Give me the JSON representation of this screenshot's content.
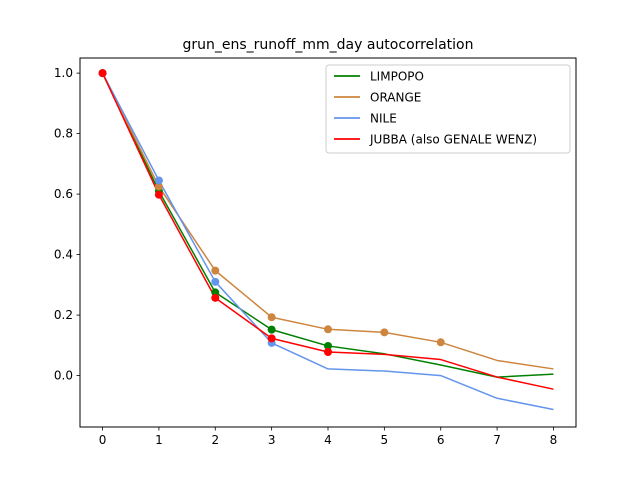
{
  "chart_data": {
    "type": "line",
    "title": "grun_ens_runoff_mm_day autocorrelation",
    "xlabel": "",
    "ylabel": "",
    "x": [
      0,
      1,
      2,
      3,
      4,
      5,
      6,
      7,
      8
    ],
    "xlim": [
      -0.4,
      8.4
    ],
    "ylim": [
      -0.17,
      1.05
    ],
    "xticks": [
      "0",
      "1",
      "2",
      "3",
      "4",
      "5",
      "6",
      "7",
      "8"
    ],
    "yticks": [
      "0.0",
      "0.2",
      "0.4",
      "0.6",
      "0.8",
      "1.0"
    ],
    "grid": false,
    "legend_position": "top-right",
    "series": [
      {
        "name": "LIMPOPO",
        "color": "#008000",
        "values": [
          1.0,
          0.61,
          0.275,
          0.152,
          0.098,
          0.072,
          0.035,
          -0.005,
          0.005
        ],
        "markers": [
          0,
          1,
          2,
          3,
          4
        ]
      },
      {
        "name": "ORANGE",
        "color": "#cd853f",
        "values": [
          1.0,
          0.625,
          0.347,
          0.193,
          0.153,
          0.143,
          0.11,
          0.05,
          0.022
        ],
        "markers": [
          0,
          1,
          2,
          3,
          4,
          5,
          6
        ]
      },
      {
        "name": "NILE",
        "color": "#6495ed",
        "values": [
          1.0,
          0.645,
          0.31,
          0.108,
          0.022,
          0.015,
          0.0,
          -0.075,
          -0.112
        ],
        "markers": [
          0,
          1,
          2,
          3
        ]
      },
      {
        "name": "JUBBA (also GENALE WENZ)",
        "color": "#ff0000",
        "values": [
          1.0,
          0.598,
          0.257,
          0.123,
          0.078,
          0.07,
          0.053,
          -0.005,
          -0.045
        ],
        "markers": [
          0,
          1,
          2,
          3,
          4
        ]
      }
    ]
  }
}
